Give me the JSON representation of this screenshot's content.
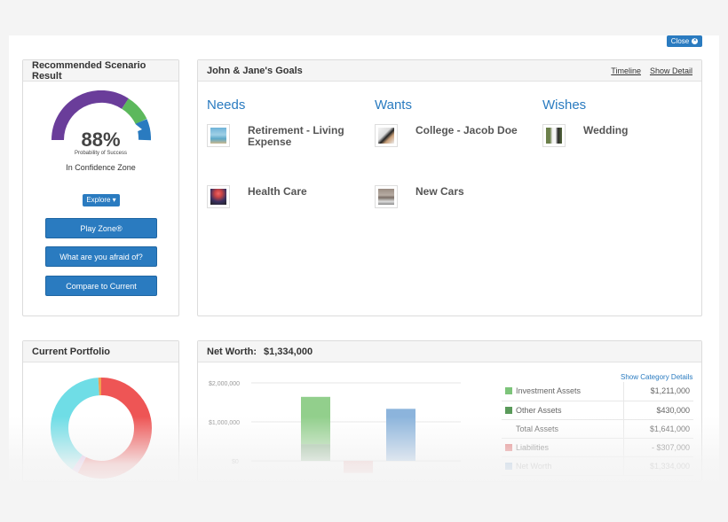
{
  "header": {
    "close_label": "Close"
  },
  "scenario": {
    "title": "Recommended Scenario Result",
    "percent": "88%",
    "percent_value": 88,
    "percent_label": "Probability of Success",
    "zone_text": "In Confidence Zone",
    "explore_label": "Explore",
    "buttons": {
      "play": "Play Zone®",
      "afraid": "What are you afraid of?",
      "compare": "Compare to Current"
    }
  },
  "goals": {
    "title": "John & Jane's Goals",
    "links": {
      "timeline": "Timeline",
      "show_detail": "Show Detail"
    },
    "needs": {
      "title": "Needs",
      "items": [
        "Retirement - Living Expense",
        "Health Care"
      ]
    },
    "wants": {
      "title": "Wants",
      "items": [
        "College - Jacob Doe",
        "New Cars"
      ]
    },
    "wishes": {
      "title": "Wishes",
      "items": [
        "Wedding"
      ]
    }
  },
  "portfolio": {
    "title": "Current Portfolio"
  },
  "networth": {
    "title": "Net Worth:",
    "value": "$1,334,000",
    "show_category": "Show Category Details",
    "rows": [
      {
        "label": "Investment Assets",
        "value": "$1,211,000",
        "color": "#7dc47a"
      },
      {
        "label": "Other Assets",
        "value": "$430,000",
        "color": "#5a9a5a"
      },
      {
        "label": "Total Assets",
        "value": "$1,641,000",
        "color": ""
      },
      {
        "label": "Liabilities",
        "value": "- $307,000",
        "color": "#e07070"
      },
      {
        "label": "Net Worth",
        "value": "$1,334,000",
        "color": "#5b8fc7"
      }
    ]
  },
  "chart_data": {
    "type": "bar",
    "ytick_labels": [
      "$2,000,000",
      "$1,000,000",
      "$0"
    ],
    "ylim": [
      -400000,
      2000000
    ],
    "series": [
      {
        "values": [
          1211000,
          430000
        ]
      },
      {
        "values": [
          -307000
        ]
      },
      {
        "values": [
          1334000
        ]
      }
    ]
  },
  "colors": {
    "accent": "#2a7bc0",
    "gauge_purple": "#6a3d9a",
    "gauge_green": "#5cb85c",
    "gauge_blue": "#2a7bc0"
  }
}
